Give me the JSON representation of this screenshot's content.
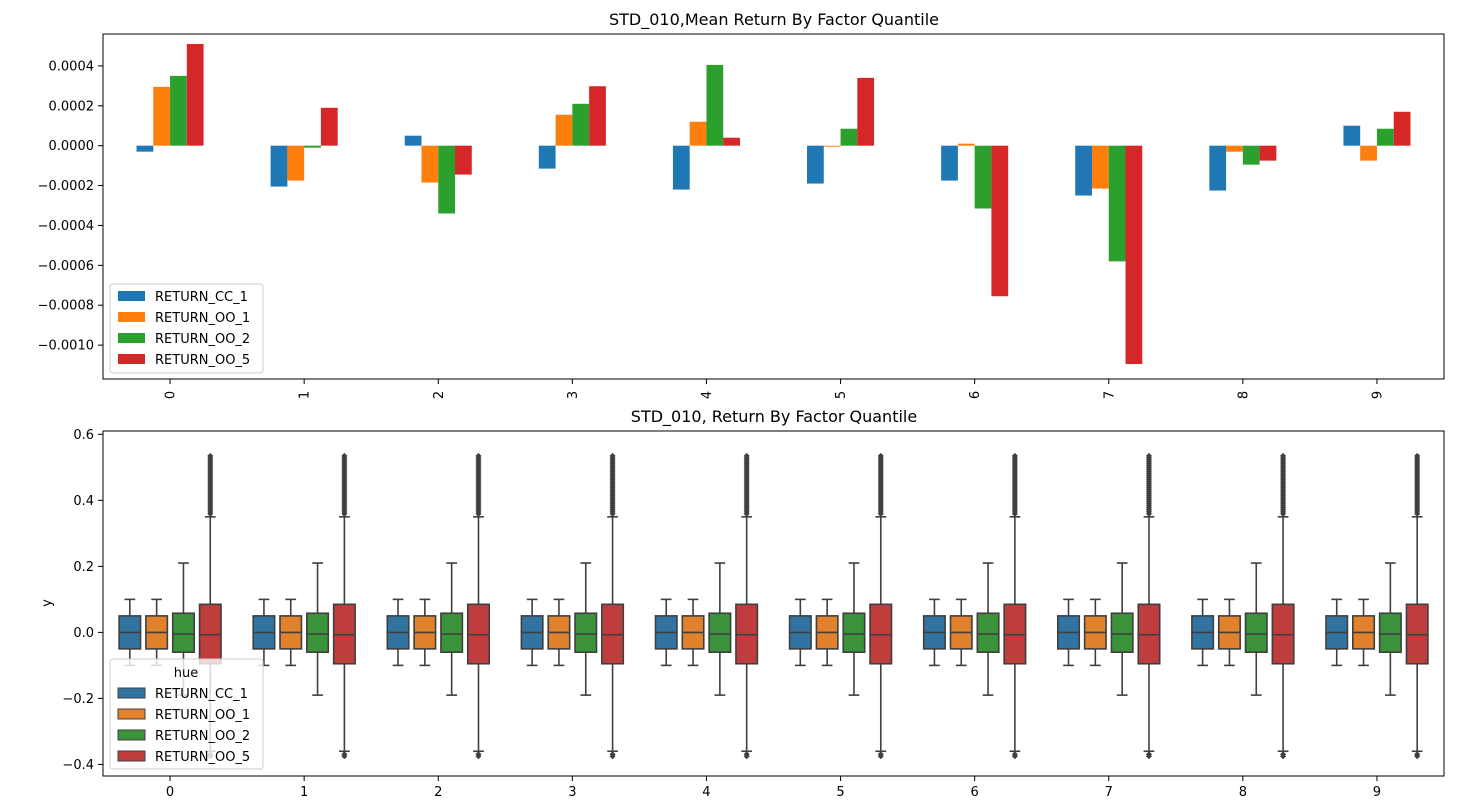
{
  "colors": {
    "RETURN_CC_1": "#1f77b4",
    "RETURN_OO_1": "#ff7f0e",
    "RETURN_OO_2": "#2ca02c",
    "RETURN_OO_5": "#d62728",
    "box_RETURN_CC_1": "#3274a1",
    "box_RETURN_OO_1": "#e1812c",
    "box_RETURN_OO_2": "#3a923a",
    "box_RETURN_OO_5": "#c03d3e",
    "box_line": "#3f3f3f"
  },
  "chart_data": [
    {
      "type": "bar",
      "title": "STD_010,Mean Return By Factor Quantile",
      "xlabel": "",
      "ylabel": "",
      "categories": [
        "0",
        "1",
        "2",
        "3",
        "4",
        "5",
        "6",
        "7",
        "8",
        "9"
      ],
      "ylim": [
        -0.00117,
        0.00056
      ],
      "yticks": [
        {
          "value": 0.0004,
          "label": "0.0004"
        },
        {
          "value": 0.0002,
          "label": "0.0002"
        },
        {
          "value": 0.0,
          "label": "0.0000"
        },
        {
          "value": -0.0002,
          "label": "−0.0002"
        },
        {
          "value": -0.0004,
          "label": "−0.0004"
        },
        {
          "value": -0.0006,
          "label": "−0.0006"
        },
        {
          "value": -0.0008,
          "label": "−0.0008"
        },
        {
          "value": -0.001,
          "label": "−0.0010"
        }
      ],
      "legend_position": "lower-left",
      "series": [
        {
          "name": "RETURN_CC_1",
          "values": [
            -3e-05,
            -0.000205,
            5e-05,
            -0.000115,
            -0.00022,
            -0.00019,
            -0.000175,
            -0.00025,
            -0.000225,
            0.0001
          ]
        },
        {
          "name": "RETURN_OO_1",
          "values": [
            0.000295,
            -0.000175,
            -0.000185,
            0.000155,
            0.00012,
            -5e-06,
            1e-05,
            -0.000215,
            -3e-05,
            -7.5e-05
          ]
        },
        {
          "name": "RETURN_OO_2",
          "values": [
            0.00035,
            -1e-05,
            -0.00034,
            0.00021,
            0.000405,
            8.5e-05,
            -0.000315,
            -0.00058,
            -9.5e-05,
            8.5e-05
          ]
        },
        {
          "name": "RETURN_OO_5",
          "values": [
            0.00051,
            0.00019,
            -0.000145,
            0.000298,
            4e-05,
            0.00034,
            -0.000755,
            -0.001095,
            -7.5e-05,
            0.00017
          ]
        }
      ]
    },
    {
      "type": "box",
      "title": "STD_010, Return By Factor Quantile",
      "xlabel": "",
      "ylabel": "y",
      "categories": [
        "0",
        "1",
        "2",
        "3",
        "4",
        "5",
        "6",
        "7",
        "8",
        "9"
      ],
      "ylim": [
        -0.435,
        0.61
      ],
      "yticks": [
        {
          "value": 0.6,
          "label": "0.6"
        },
        {
          "value": 0.4,
          "label": "0.4"
        },
        {
          "value": 0.2,
          "label": "0.2"
        },
        {
          "value": 0.0,
          "label": "0.0"
        },
        {
          "value": -0.2,
          "label": "−0.2"
        },
        {
          "value": -0.4,
          "label": "−0.4"
        }
      ],
      "legend_title": "hue",
      "legend_position": "lower-left",
      "series": [
        {
          "name": "RETURN_CC_1",
          "q1": -0.05,
          "median": 0.0,
          "q3": 0.05,
          "whisker_low": -0.1,
          "whisker_high": 0.1,
          "outlier_low": null,
          "outlier_high": null
        },
        {
          "name": "RETURN_OO_1",
          "q1": -0.05,
          "median": 0.0,
          "q3": 0.05,
          "whisker_low": -0.1,
          "whisker_high": 0.1,
          "outlier_low": null,
          "outlier_high": null
        },
        {
          "name": "RETURN_OO_2",
          "q1": -0.06,
          "median": -0.005,
          "q3": 0.058,
          "whisker_low": -0.19,
          "whisker_high": 0.21,
          "outlier_low": null,
          "outlier_high": null
        },
        {
          "name": "RETURN_OO_5",
          "q1": -0.095,
          "median": -0.007,
          "q3": 0.085,
          "whisker_low": -0.36,
          "whisker_high": 0.35,
          "outlier_low": -0.38,
          "outlier_high": 0.54
        }
      ]
    }
  ]
}
